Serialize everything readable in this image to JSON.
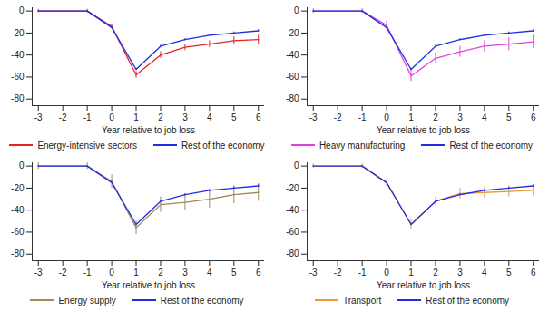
{
  "chart_data": [
    {
      "type": "line",
      "xlabel": "Year relative to job loss",
      "x": [
        -3,
        -2,
        -1,
        0,
        1,
        2,
        3,
        4,
        5,
        6
      ],
      "xlim": [
        -3.25,
        6.25
      ],
      "xticks": [
        -3,
        -2,
        -1,
        0,
        1,
        2,
        3,
        4,
        5,
        6
      ],
      "ylim": [
        -86,
        3
      ],
      "yticks": [
        0,
        -20,
        -40,
        -60,
        -80
      ],
      "grid": false,
      "series": [
        {
          "name": "Energy-intensive sectors",
          "color": "#e3242b",
          "values": [
            0,
            0,
            0,
            -14,
            -58,
            -40,
            -33,
            -30,
            -27,
            -26
          ],
          "error": [
            1.5,
            0,
            1.5,
            2,
            3,
            3,
            3,
            3,
            3.5,
            4
          ]
        },
        {
          "name": "Rest of the economy",
          "color": "#1f2fe0",
          "values": [
            0,
            0,
            0,
            -15,
            -53,
            -32,
            -26,
            -22,
            -20,
            -18
          ],
          "error": [
            0.5,
            0,
            0.5,
            0.8,
            1,
            1,
            1,
            1,
            1,
            1
          ]
        }
      ]
    },
    {
      "type": "line",
      "xlabel": "Year relative to job loss",
      "x": [
        -3,
        -2,
        -1,
        0,
        1,
        2,
        3,
        4,
        5,
        6
      ],
      "xlim": [
        -3.25,
        6.25
      ],
      "xticks": [
        -3,
        -2,
        -1,
        0,
        1,
        2,
        3,
        4,
        5,
        6
      ],
      "ylim": [
        -86,
        3
      ],
      "yticks": [
        0,
        -20,
        -40,
        -60,
        -80
      ],
      "grid": false,
      "series": [
        {
          "name": "Heavy manufacturing",
          "color": "#e040e0",
          "values": [
            0,
            0,
            0,
            -13,
            -59,
            -43,
            -37,
            -32,
            -30,
            -28
          ],
          "error": [
            2,
            0,
            2,
            4,
            5,
            5,
            5,
            5,
            6,
            6
          ]
        },
        {
          "name": "Rest of the economy",
          "color": "#1f2fe0",
          "values": [
            0,
            0,
            0,
            -15,
            -53,
            -32,
            -26,
            -22,
            -20,
            -18
          ],
          "error": [
            0.5,
            0,
            0.5,
            0.8,
            1,
            1,
            1,
            1,
            1,
            1
          ]
        }
      ]
    },
    {
      "type": "line",
      "xlabel": "Year relative to job loss",
      "x": [
        -3,
        -2,
        -1,
        0,
        1,
        2,
        3,
        4,
        5,
        6
      ],
      "xlim": [
        -3.25,
        6.25
      ],
      "xticks": [
        -3,
        -2,
        -1,
        0,
        1,
        2,
        3,
        4,
        5,
        6
      ],
      "ylim": [
        -86,
        3
      ],
      "yticks": [
        0,
        -20,
        -40,
        -60,
        -80
      ],
      "grid": false,
      "series": [
        {
          "name": "Energy supply",
          "color": "#a08a5c",
          "values": [
            0,
            0,
            0,
            -14,
            -56,
            -35,
            -33,
            -30,
            -26,
            -24
          ],
          "error": [
            3,
            0,
            3,
            6,
            6,
            7,
            7,
            8,
            8,
            8
          ]
        },
        {
          "name": "Rest of the economy",
          "color": "#1f2fe0",
          "values": [
            0,
            0,
            0,
            -15,
            -53,
            -32,
            -26,
            -22,
            -20,
            -18
          ],
          "error": [
            0.5,
            0,
            0.5,
            0.8,
            1,
            1,
            1,
            1,
            1,
            1
          ]
        }
      ]
    },
    {
      "type": "line",
      "xlabel": "Year relative to job loss",
      "x": [
        -3,
        -2,
        -1,
        0,
        1,
        2,
        3,
        4,
        5,
        6
      ],
      "xlim": [
        -3.25,
        6.25
      ],
      "xticks": [
        -3,
        -2,
        -1,
        0,
        1,
        2,
        3,
        4,
        5,
        6
      ],
      "ylim": [
        -86,
        3
      ],
      "yticks": [
        0,
        -20,
        -40,
        -60,
        -80
      ],
      "grid": false,
      "series": [
        {
          "name": "Transport",
          "color": "#e89a3c",
          "values": [
            0,
            0,
            0,
            -15,
            -53,
            -32,
            -25,
            -24,
            -23,
            -22
          ],
          "error": [
            2,
            0,
            2,
            3,
            4,
            4,
            5,
            5,
            5,
            5
          ]
        },
        {
          "name": "Rest of the economy",
          "color": "#1f2fe0",
          "values": [
            0,
            0,
            0,
            -15,
            -53,
            -32,
            -26,
            -22,
            -20,
            -18
          ],
          "error": [
            0.5,
            0,
            0.5,
            0.8,
            1,
            1,
            1,
            1,
            1,
            1
          ]
        }
      ]
    }
  ]
}
